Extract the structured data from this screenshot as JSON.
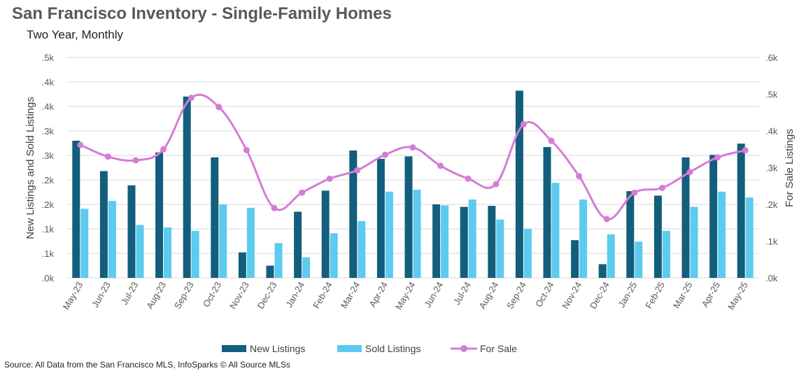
{
  "header": {
    "title": "San Francisco Inventory - Single-Family Homes",
    "subtitle": "Two Year, Monthly"
  },
  "footer": {
    "source": "Source: All Data from the San Francisco MLS, InfoSparks © All Source MLSs"
  },
  "colors": {
    "new_listings": "#135e7c",
    "sold_listings": "#5ccbef",
    "for_sale": "#d57cd6",
    "grid": "#d9d9d9",
    "axis_text": "#595959"
  },
  "chart_data": {
    "type": "bar",
    "categories": [
      "May-23",
      "Jun-23",
      "Jul-23",
      "Aug-23",
      "Sep-23",
      "Oct-23",
      "Nov-23",
      "Dec-23",
      "Jan-24",
      "Feb-24",
      "Mar-24",
      "Apr-24",
      "May-24",
      "Jun-24",
      "Jul-24",
      "Aug-24",
      "Sep-24",
      "Oct-24",
      "Nov-24",
      "Dec-24",
      "Jan-25",
      "Feb-25",
      "Mar-25",
      "Apr-25",
      "May-25"
    ],
    "ylabel": "New Listings and Sold Listings",
    "y2label": "For Sale Listings",
    "ylim": [
      0,
      450
    ],
    "y2lim": [
      0,
      600
    ],
    "yticks": [
      ".0k",
      ".1k",
      ".1k",
      ".2k",
      ".2k",
      ".3k",
      ".3k",
      ".4k",
      ".4k",
      ".5k"
    ],
    "y2ticks": [
      ".0k",
      ".1k",
      ".2k",
      ".3k",
      ".4k",
      ".5k",
      ".6k"
    ],
    "grid": true,
    "legend_position": "bottom",
    "series": [
      {
        "name": "New Listings",
        "kind": "bar",
        "axis": "left",
        "values": [
          280,
          218,
          189,
          256,
          370,
          246,
          52,
          25,
          135,
          178,
          260,
          243,
          248,
          150,
          145,
          147,
          382,
          267,
          77,
          28,
          177,
          168,
          246,
          251,
          274
        ]
      },
      {
        "name": "Sold Listings",
        "kind": "bar",
        "axis": "left",
        "values": [
          141,
          157,
          108,
          103,
          96,
          150,
          143,
          71,
          42,
          91,
          116,
          176,
          180,
          148,
          160,
          119,
          100,
          194,
          160,
          89,
          74,
          96,
          145,
          176,
          164
        ]
      },
      {
        "name": "For Sale",
        "kind": "line",
        "axis": "right",
        "values": [
          362,
          330,
          320,
          350,
          490,
          465,
          348,
          190,
          232,
          270,
          293,
          335,
          355,
          305,
          270,
          255,
          418,
          373,
          277,
          160,
          232,
          245,
          288,
          328,
          347
        ]
      }
    ]
  }
}
